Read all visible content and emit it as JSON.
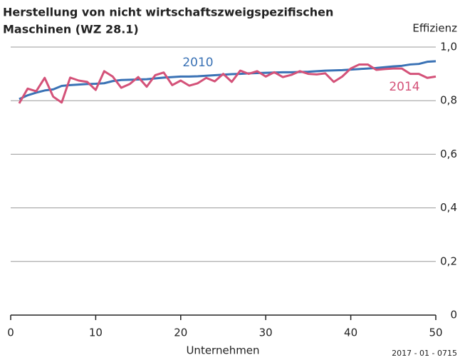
{
  "chart_data": {
    "type": "line",
    "title": [
      "Herstellung von nicht wirtschaftszweigspezifischen",
      "Maschinen (WZ 28.1)"
    ],
    "y_label": "Effizienz",
    "x_label": "Unternehmen",
    "source": "2017 - 01 - 0715",
    "x": [
      1,
      2,
      3,
      4,
      5,
      6,
      7,
      8,
      9,
      10,
      11,
      12,
      13,
      14,
      15,
      16,
      17,
      18,
      19,
      20,
      21,
      22,
      23,
      24,
      25,
      26,
      27,
      28,
      29,
      30,
      31,
      32,
      33,
      34,
      35,
      36,
      37,
      38,
      39,
      40,
      41,
      42,
      43,
      44,
      45,
      46,
      47,
      48,
      49,
      50
    ],
    "series": [
      {
        "name": "2010",
        "color": "#3a72b5",
        "values": [
          0.806,
          0.82,
          0.83,
          0.838,
          0.842,
          0.855,
          0.858,
          0.86,
          0.862,
          0.863,
          0.865,
          0.873,
          0.877,
          0.878,
          0.879,
          0.88,
          0.883,
          0.886,
          0.888,
          0.89,
          0.89,
          0.891,
          0.893,
          0.895,
          0.897,
          0.899,
          0.9,
          0.902,
          0.903,
          0.904,
          0.905,
          0.906,
          0.906,
          0.907,
          0.908,
          0.91,
          0.912,
          0.913,
          0.914,
          0.916,
          0.918,
          0.92,
          0.922,
          0.925,
          0.928,
          0.93,
          0.935,
          0.937,
          0.945,
          0.947
        ]
      },
      {
        "name": "2014",
        "color": "#d45279",
        "values": [
          0.79,
          0.845,
          0.835,
          0.885,
          0.815,
          0.793,
          0.886,
          0.875,
          0.87,
          0.84,
          0.91,
          0.89,
          0.848,
          0.862,
          0.888,
          0.852,
          0.895,
          0.905,
          0.858,
          0.875,
          0.856,
          0.865,
          0.885,
          0.872,
          0.9,
          0.87,
          0.912,
          0.9,
          0.91,
          0.89,
          0.906,
          0.888,
          0.896,
          0.91,
          0.9,
          0.898,
          0.902,
          0.87,
          0.89,
          0.92,
          0.935,
          0.935,
          0.915,
          0.918,
          0.92,
          0.92,
          0.9,
          0.9,
          0.885,
          0.89
        ]
      }
    ],
    "xlim": [
      0,
      50
    ],
    "xticks": [
      0,
      10,
      20,
      30,
      40,
      50
    ],
    "ylim": [
      0,
      1
    ],
    "yticks": [
      {
        "value": 0,
        "label": "0"
      },
      {
        "value": 0.2,
        "label": "0,2"
      },
      {
        "value": 0.4,
        "label": "0,4"
      },
      {
        "value": 0.6,
        "label": "0,6"
      },
      {
        "value": 0.8,
        "label": "0,8"
      },
      {
        "value": 1,
        "label": "1,0"
      }
    ],
    "grid": true
  }
}
